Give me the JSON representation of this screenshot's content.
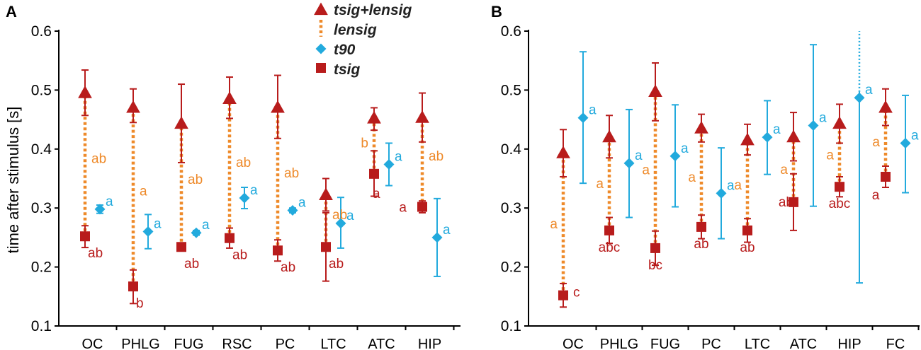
{
  "colors": {
    "tsig": "#b81c1c",
    "lensig": "#ee8a2a",
    "t90": "#22aadd",
    "axis": "#000000"
  },
  "legend": {
    "items": [
      {
        "key": "tsig_lensig",
        "label": "tsig+lensig",
        "marker": "triangle"
      },
      {
        "key": "lensig",
        "label": "lensig",
        "marker": "dotted-line"
      },
      {
        "key": "t90",
        "label": "t90",
        "marker": "diamond"
      },
      {
        "key": "tsig",
        "label": "tsig",
        "marker": "square"
      }
    ]
  },
  "chart_data": [
    {
      "panel": "A",
      "type": "scatter",
      "ylabel": "time after stimulus [s]",
      "ylim": [
        0.1,
        0.6
      ],
      "yticks": [
        "0.1",
        "0.2",
        "0.3",
        "0.4",
        "0.5",
        "0.6"
      ],
      "categories": [
        "OC",
        "PHLG",
        "FUG",
        "RSC",
        "PC",
        "LTC",
        "ATC",
        "HIP"
      ],
      "series": [
        {
          "name": "tsig+lensig",
          "marker": "triangle",
          "values": [
            0.495,
            0.47,
            0.443,
            0.485,
            0.47,
            0.322,
            0.452,
            0.453
          ],
          "err_low": [
            0.457,
            0.445,
            0.377,
            0.452,
            0.418,
            0.295,
            0.432,
            0.412
          ],
          "err_high": [
            0.534,
            0.502,
            0.51,
            0.522,
            0.525,
            0.35,
            0.47,
            0.495
          ]
        },
        {
          "name": "tsig",
          "marker": "square",
          "values": [
            0.252,
            0.167,
            0.234,
            0.249,
            0.228,
            0.234,
            0.358,
            0.302
          ],
          "err_low": [
            0.233,
            0.138,
            0.23,
            0.232,
            0.21,
            0.176,
            0.32,
            0.292
          ],
          "err_high": [
            0.27,
            0.195,
            0.238,
            0.266,
            0.246,
            0.292,
            0.397,
            0.312
          ],
          "labels": [
            "ab",
            "b",
            "ab",
            "ab",
            "ab",
            "ab",
            "a",
            "a"
          ]
        },
        {
          "name": "t90",
          "marker": "diamond",
          "values": [
            0.298,
            0.26,
            0.258,
            0.317,
            0.296,
            0.274,
            0.374,
            0.25
          ],
          "err_low": [
            0.291,
            0.231,
            0.254,
            0.299,
            0.292,
            0.232,
            0.338,
            0.184
          ],
          "err_high": [
            0.305,
            0.289,
            0.262,
            0.335,
            0.3,
            0.318,
            0.41,
            0.316
          ],
          "labels": [
            "a",
            "a",
            "a",
            "a",
            "a",
            "a",
            "a",
            "a"
          ]
        },
        {
          "name": "lensig",
          "marker": "dotted-line",
          "labels": [
            "ab",
            "a",
            "ab",
            "ab",
            "ab",
            "ab",
            "b",
            "ab"
          ]
        }
      ]
    },
    {
      "panel": "B",
      "type": "scatter",
      "ylim": [
        0.1,
        0.6
      ],
      "yticks": [
        "0.1",
        "0.2",
        "0.3",
        "0.4",
        "0.5",
        "0.6"
      ],
      "categories": [
        "OC",
        "PHLG",
        "FUG",
        "PC",
        "LTC",
        "ATC",
        "HIP",
        "FC"
      ],
      "series": [
        {
          "name": "tsig+lensig",
          "marker": "triangle",
          "values": [
            0.393,
            0.42,
            0.497,
            0.435,
            0.415,
            0.42,
            0.443,
            0.47
          ],
          "err_low": [
            0.353,
            0.385,
            0.448,
            0.412,
            0.39,
            0.38,
            0.41,
            0.44
          ],
          "err_high": [
            0.433,
            0.457,
            0.546,
            0.459,
            0.442,
            0.462,
            0.476,
            0.502
          ]
        },
        {
          "name": "tsig",
          "marker": "square",
          "values": [
            0.152,
            0.262,
            0.232,
            0.268,
            0.262,
            0.31,
            0.336,
            0.353
          ],
          "err_low": [
            0.132,
            0.24,
            0.203,
            0.248,
            0.242,
            0.262,
            0.319,
            0.335
          ],
          "err_high": [
            0.172,
            0.284,
            0.261,
            0.288,
            0.282,
            0.358,
            0.353,
            0.371
          ],
          "labels": [
            "c",
            "abc",
            "bc",
            "ab",
            "ab",
            "ab",
            "abc",
            "a"
          ]
        },
        {
          "name": "t90",
          "marker": "diamond",
          "values": [
            0.453,
            0.376,
            0.388,
            0.325,
            0.42,
            0.44,
            0.487,
            0.41
          ],
          "err_low": [
            0.342,
            0.284,
            0.302,
            0.248,
            0.357,
            0.303,
            0.173,
            0.326
          ],
          "err_high": [
            0.565,
            0.467,
            0.475,
            0.402,
            0.482,
            0.577,
            0.6,
            0.491
          ],
          "err_high_clipped": [
            false,
            false,
            false,
            false,
            false,
            false,
            true,
            false
          ],
          "labels": [
            "a",
            "a",
            "a",
            "a",
            "a",
            "a",
            "a",
            "a"
          ]
        },
        {
          "name": "lensig",
          "marker": "dotted-line",
          "labels": [
            "a",
            "a",
            "a",
            "a",
            "a",
            "a",
            "a",
            "a"
          ]
        }
      ]
    }
  ]
}
